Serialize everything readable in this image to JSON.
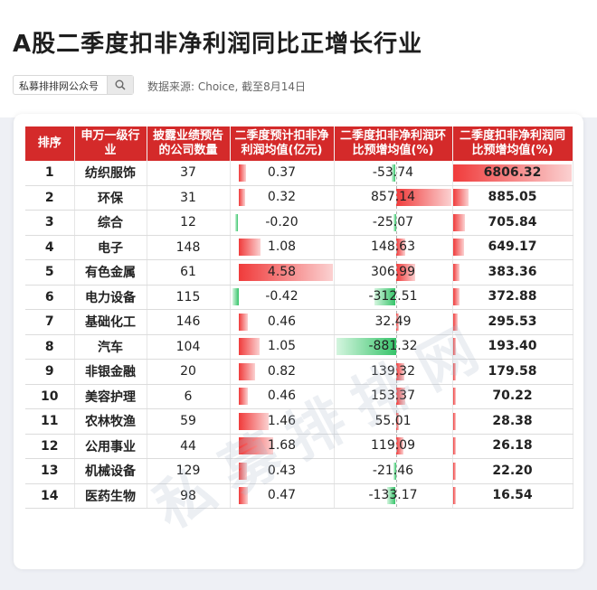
{
  "title": "A股二季度扣非净利润同比正增长行业",
  "search": {
    "label": "私募排排网公众号"
  },
  "source": "数据来源: Choice, 截至8月14日",
  "watermark": "私募排排网",
  "colors": {
    "header": "#d42a2a",
    "positive": "#f03b3b",
    "negative": "#37c46a"
  },
  "chart_data": {
    "type": "table",
    "columns": [
      "排序",
      "申万一级行业",
      "披露业绩预告的公司数量",
      "二季度预计扣非净利润均值(亿元)",
      "二季度扣非净利润环比预增均值(%)",
      "二季度扣非净利润同比预增均值(%)"
    ],
    "rows": [
      {
        "rank": "1",
        "industry": "纺织服饰",
        "count": "37",
        "profit": "0.37",
        "qoq": "-53.74",
        "yoy": "6806.32"
      },
      {
        "rank": "2",
        "industry": "环保",
        "count": "31",
        "profit": "0.32",
        "qoq": "857.14",
        "yoy": "885.05"
      },
      {
        "rank": "3",
        "industry": "综合",
        "count": "12",
        "profit": "-0.20",
        "qoq": "-25.07",
        "yoy": "705.84"
      },
      {
        "rank": "4",
        "industry": "电子",
        "count": "148",
        "profit": "1.08",
        "qoq": "148.63",
        "yoy": "649.17"
      },
      {
        "rank": "5",
        "industry": "有色金属",
        "count": "61",
        "profit": "4.58",
        "qoq": "306.99",
        "yoy": "383.36"
      },
      {
        "rank": "6",
        "industry": "电力设备",
        "count": "115",
        "profit": "-0.42",
        "qoq": "-312.51",
        "yoy": "372.88"
      },
      {
        "rank": "7",
        "industry": "基础化工",
        "count": "146",
        "profit": "0.46",
        "qoq": "32.49",
        "yoy": "295.53"
      },
      {
        "rank": "8",
        "industry": "汽车",
        "count": "104",
        "profit": "1.05",
        "qoq": "-881.32",
        "yoy": "193.40"
      },
      {
        "rank": "9",
        "industry": "非银金融",
        "count": "20",
        "profit": "0.82",
        "qoq": "139.32",
        "yoy": "179.58"
      },
      {
        "rank": "10",
        "industry": "美容护理",
        "count": "6",
        "profit": "0.46",
        "qoq": "153.37",
        "yoy": "70.22"
      },
      {
        "rank": "11",
        "industry": "农林牧渔",
        "count": "59",
        "profit": "1.46",
        "qoq": "55.01",
        "yoy": "28.38"
      },
      {
        "rank": "12",
        "industry": "公用事业",
        "count": "44",
        "profit": "1.68",
        "qoq": "119.09",
        "yoy": "26.18"
      },
      {
        "rank": "13",
        "industry": "机械设备",
        "count": "129",
        "profit": "0.43",
        "qoq": "-21.46",
        "yoy": "22.20"
      },
      {
        "rank": "14",
        "industry": "医药生物",
        "count": "98",
        "profit": "0.47",
        "qoq": "-133.17",
        "yoy": "16.54"
      }
    ]
  }
}
